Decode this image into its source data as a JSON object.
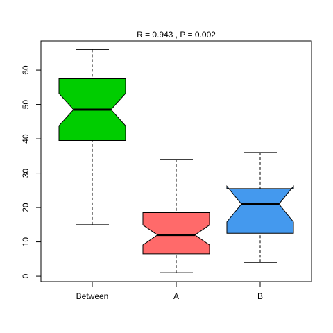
{
  "chart_data": {
    "type": "boxplot",
    "title": "R =  0.943 ,  P =  0.002",
    "categories": [
      "Between",
      "A",
      "B"
    ],
    "series": [
      {
        "name": "Between",
        "color": "#00cd00",
        "min": 15,
        "q1": 39.5,
        "median": 48.5,
        "q3": 57.5,
        "max": 66,
        "notch_low": 43.8,
        "notch_high": 53.2
      },
      {
        "name": "A",
        "color": "#ff6a6a",
        "min": 1,
        "q1": 6.5,
        "median": 12,
        "q3": 18.5,
        "max": 34,
        "notch_low": 9.1,
        "notch_high": 14.9
      },
      {
        "name": "B",
        "color": "#4499ee",
        "min": 4,
        "q1": 12.5,
        "median": 21,
        "q3": 25.5,
        "max": 36,
        "notch_low": 15.8,
        "notch_high": 26.2
      }
    ],
    "ylim": [
      -1.6,
      68.5
    ],
    "yticks": [
      0,
      10,
      20,
      30,
      40,
      50,
      60
    ]
  }
}
